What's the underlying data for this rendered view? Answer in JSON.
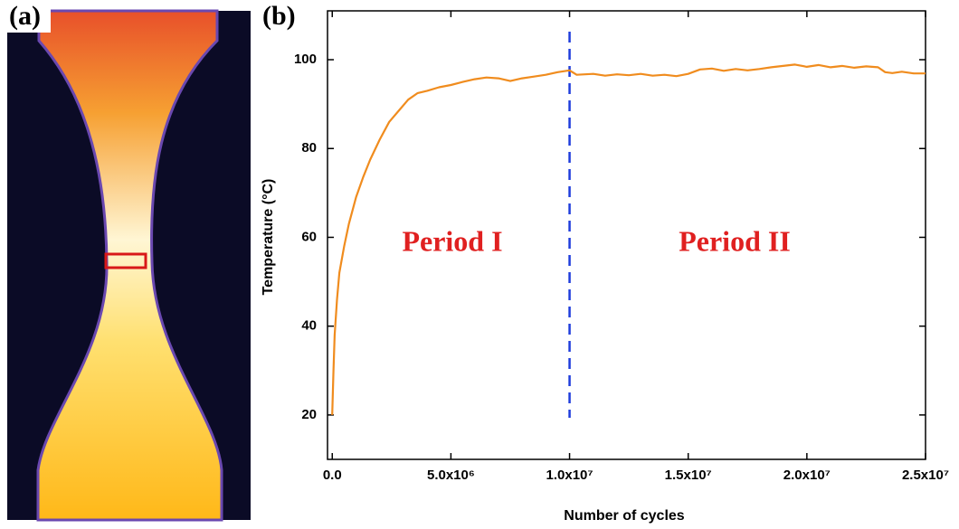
{
  "panel_labels": [
    "(a)",
    "(b)"
  ],
  "chart_data": {
    "type": "line",
    "x_label": "Number of cycles",
    "y_label": "Temperature (°C)",
    "color": "#f08c1e",
    "x": [
      0,
      50000,
      100000,
      200000,
      300000,
      500000,
      700000,
      1000000,
      1300000,
      1600000,
      2000000,
      2400000,
      2800000,
      3200000,
      3600000,
      4000000,
      4500000,
      5000000,
      5500000,
      6000000,
      6500000,
      7000000,
      7500000,
      8000000,
      8500000,
      9000000,
      9500000,
      10000000,
      10300000,
      11000000,
      11500000,
      12000000,
      12500000,
      13000000,
      13500000,
      14000000,
      14500000,
      15000000,
      15500000,
      16000000,
      16500000,
      17000000,
      17500000,
      18000000,
      18500000,
      19000000,
      19500000,
      20000000,
      20500000,
      21000000,
      21500000,
      22000000,
      22500000,
      23000000,
      23300000,
      23600000,
      24000000,
      24500000,
      25000000
    ],
    "values": [
      20,
      30,
      38,
      46,
      52,
      58,
      63,
      69,
      73.5,
      77.5,
      82,
      86,
      88.5,
      91,
      92.5,
      93,
      93.8,
      94.3,
      95,
      95.6,
      96,
      95.8,
      95.2,
      95.8,
      96.2,
      96.6,
      97.2,
      97.6,
      96.6,
      96.8,
      96.4,
      96.7,
      96.5,
      96.8,
      96.4,
      96.6,
      96.3,
      96.8,
      97.8,
      98,
      97.5,
      97.9,
      97.6,
      97.9,
      98.3,
      98.6,
      98.9,
      98.4,
      98.8,
      98.3,
      98.6,
      98.2,
      98.5,
      98.3,
      97.2,
      97,
      97.3,
      96.9,
      96.9
    ],
    "xlim": [
      -200000,
      25000000
    ],
    "ylim": [
      10,
      111
    ],
    "xticks": [
      {
        "value": 0,
        "label": "0.0"
      },
      {
        "value": 5000000,
        "label": "5.0x10⁶"
      },
      {
        "value": 10000000,
        "label": "1.0x10⁷"
      },
      {
        "value": 15000000,
        "label": "1.5x10⁷"
      },
      {
        "value": 20000000,
        "label": "2.0x10⁷"
      },
      {
        "value": 25000000,
        "label": "2.5x10⁷"
      }
    ],
    "yticks": [
      20,
      40,
      60,
      80,
      100
    ],
    "grid": false,
    "vlines": [
      {
        "x": 10000000,
        "color": "#1e3cdc",
        "style": "dashed"
      }
    ],
    "annotations": [
      {
        "text": "Period I",
        "color": "#e02020"
      },
      {
        "text": "Period II",
        "color": "#e02020"
      }
    ]
  }
}
